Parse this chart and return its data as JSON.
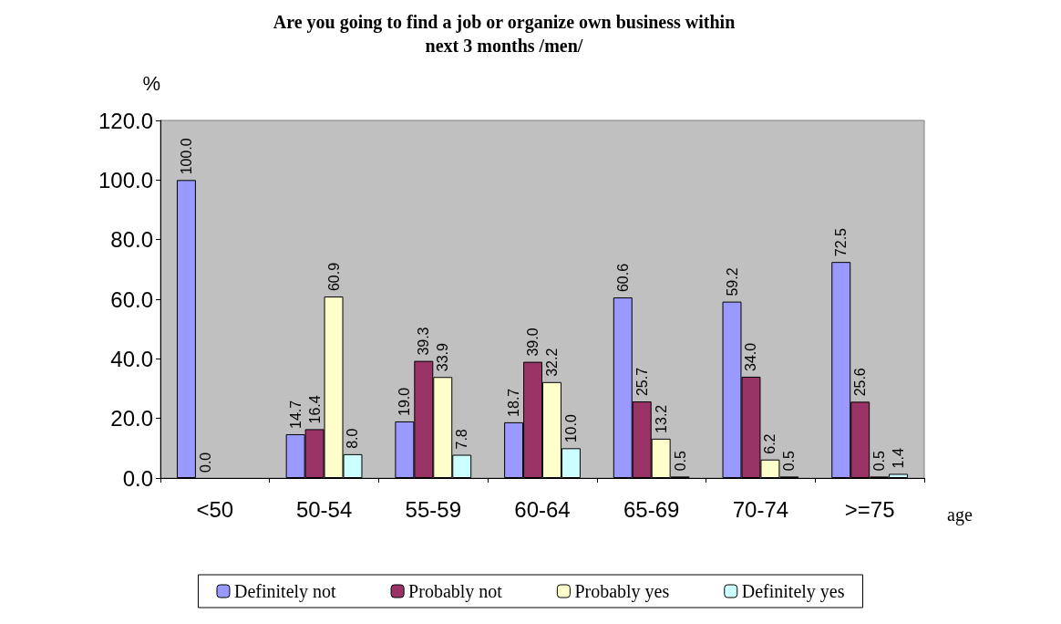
{
  "chart_data": {
    "type": "bar",
    "title": "Are you going to find a job or organize own business within\nnext 3 months /men/",
    "ylabel": "%",
    "xlabel": "age",
    "categories": [
      "<50",
      "50-54",
      "55-59",
      "60-64",
      "65-69",
      "70-74",
      ">=75"
    ],
    "series": [
      {
        "name": "Definitely not",
        "color": "#9999ff",
        "values": [
          100.0,
          14.7,
          19.0,
          18.7,
          60.6,
          59.2,
          72.5
        ],
        "value_labels": [
          "100.0",
          "14.7",
          "19.0",
          "18.7",
          "60.6",
          "59.2",
          "72.5"
        ]
      },
      {
        "name": "Probably not",
        "color": "#993366",
        "values": [
          0.0,
          16.4,
          39.3,
          39.0,
          25.7,
          34.0,
          25.6
        ],
        "value_labels": [
          "0.0",
          "16.4",
          "39.3",
          "39.0",
          "25.7",
          "34.0",
          "25.6"
        ]
      },
      {
        "name": "Probably yes",
        "color": "#ffffcc",
        "values": [
          null,
          60.9,
          33.9,
          32.2,
          13.2,
          6.2,
          0.5
        ],
        "value_labels": [
          null,
          "60.9",
          "33.9",
          "32.2",
          "13.2",
          "6.2",
          "0.5"
        ]
      },
      {
        "name": "Definitely yes",
        "color": "#ccffff",
        "values": [
          null,
          8.0,
          7.8,
          10.0,
          0.5,
          0.5,
          1.4
        ],
        "value_labels": [
          null,
          "8.0",
          "7.8",
          "10.0",
          "0.5",
          "0.5",
          "1.4"
        ]
      }
    ],
    "ylim": [
      0,
      120
    ],
    "yticks": [
      {
        "value": 0,
        "label": "0.0"
      },
      {
        "value": 20,
        "label": "20.0"
      },
      {
        "value": 40,
        "label": "40.0"
      },
      {
        "value": 60,
        "label": "60.0"
      },
      {
        "value": 80,
        "label": "80.0"
      },
      {
        "value": 100,
        "label": "100.0"
      },
      {
        "value": 120,
        "label": "120.0"
      }
    ],
    "grid": false,
    "legend": "bottom"
  }
}
